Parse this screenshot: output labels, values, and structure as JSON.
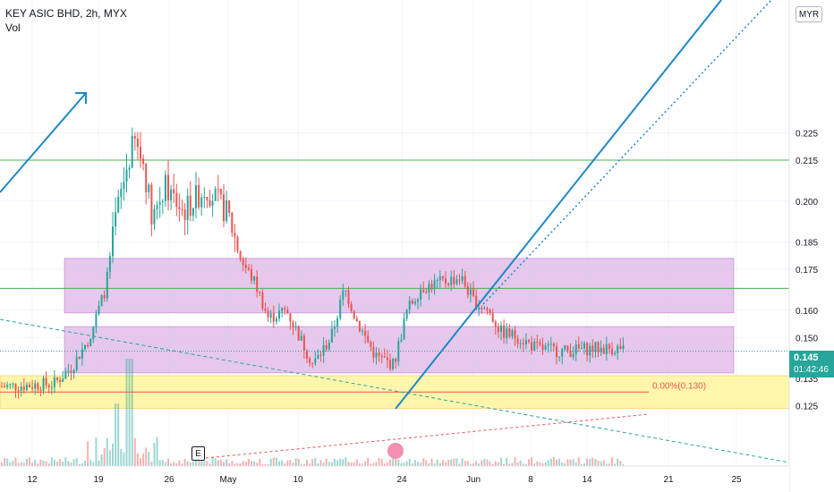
{
  "header": {
    "symbol_line": "KEY ASIC BHD, 2h, MYX",
    "indicator": "Vol"
  },
  "currency_button": "MYR",
  "last_price": {
    "price": "0.145",
    "countdown": "01:42:46"
  },
  "earnings_marker": "E",
  "fib_label": "0.00%(0.130)",
  "colors": {
    "up": "#26a69a",
    "down": "#ef5350",
    "zone_purple": "#e1bee7",
    "zone_yellow": "#fff59d",
    "hline_green": "#4caf50",
    "trend_blue": "#1e88c8",
    "fib_red": "#ef5350"
  },
  "chart_data": {
    "type": "candlestick",
    "y_axis": {
      "ticks": [
        0.125,
        0.135,
        0.15,
        0.16,
        0.175,
        0.185,
        0.2,
        0.215,
        0.225
      ]
    },
    "x_axis": {
      "ticks": [
        "12",
        "19",
        "26",
        "May",
        "10",
        "24",
        "Jun",
        "8",
        "14",
        "21",
        "25"
      ]
    },
    "horizontal_lines": [
      0.215,
      0.168
    ],
    "zones": [
      {
        "color": "purple",
        "range": [
          0.159,
          0.179
        ]
      },
      {
        "color": "purple",
        "range": [
          0.137,
          0.154
        ]
      },
      {
        "color": "yellow",
        "range": [
          0.124,
          0.136
        ]
      }
    ],
    "fib_level": 0.13,
    "last_price": 0.145
  }
}
